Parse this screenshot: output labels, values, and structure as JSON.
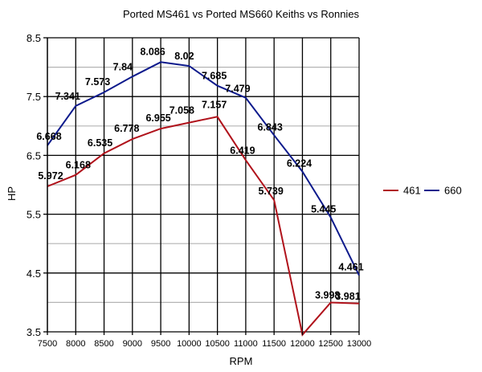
{
  "chart_data": {
    "type": "line",
    "title": "Ported MS461 vs Ported MS660 Keiths vs Ronnies",
    "xlabel": "RPM",
    "ylabel": "HP",
    "x": [
      7500,
      8000,
      8500,
      9000,
      9500,
      10000,
      10500,
      11000,
      11500,
      12000,
      12500,
      13000
    ],
    "x_tick_labels": [
      "7500",
      "8000",
      "8500",
      "9000",
      "9500",
      "10000",
      "10500",
      "11000",
      "11500",
      "12000",
      "12500",
      "13000"
    ],
    "ylim": [
      3.5,
      8.5
    ],
    "y_major_ticks": [
      3.5,
      4.5,
      5.5,
      6.5,
      7.5,
      8.5
    ],
    "y_tick_labels": [
      "3.5",
      "4.5",
      "5.5",
      "6.5",
      "7.5",
      "8.5"
    ],
    "y_minor_gridlines": [
      4.0,
      5.0,
      6.0,
      7.0,
      8.0
    ],
    "grid": true,
    "legend_position": "right",
    "series": [
      {
        "name": "461",
        "color": "#b0121b",
        "values": [
          5.972,
          6.168,
          6.535,
          6.778,
          6.955,
          7.058,
          7.157,
          6.419,
          5.739,
          3.45,
          3.998,
          3.981
        ],
        "labels": [
          "5.972",
          "6.168",
          "6.535",
          "6.778",
          "6.955",
          "7.058",
          "7.157",
          "6.419",
          "5.739",
          "",
          "3.998",
          "3.981"
        ]
      },
      {
        "name": "660",
        "color": "#0d1a8c",
        "values": [
          6.668,
          7.341,
          7.573,
          7.84,
          8.086,
          8.02,
          7.685,
          7.479,
          6.843,
          6.224,
          5.445,
          4.461
        ],
        "labels": [
          "6.668",
          "7.341",
          "7.573",
          "7.84",
          "8.086",
          "8.02",
          "7.685",
          "7.479",
          "6.843",
          "6.224",
          "5.445",
          "4.461"
        ]
      }
    ]
  }
}
